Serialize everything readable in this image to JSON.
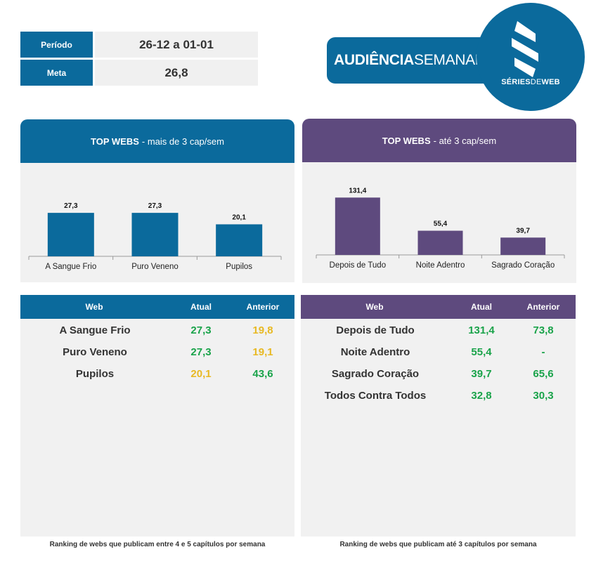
{
  "info": {
    "periodo_label": "Período",
    "periodo_value": "26-12 a 01-01",
    "meta_label": "Meta",
    "meta_value": "26,8"
  },
  "title": {
    "bold": "AUDIÊNCIA",
    "light": "SEMANAL"
  },
  "logo": {
    "bold1": "SÉRIES",
    "thin": "DE",
    "bold2": "WEB"
  },
  "colors": {
    "blue": "#0b6a9c",
    "purple": "#5e4a7e",
    "green": "#1aa34a",
    "yellow": "#e8b923"
  },
  "chart_data": [
    {
      "type": "bar",
      "title": "TOP WEBS - mais de 3 cap/sem",
      "title_bold": "TOP WEBS",
      "title_rest": "- mais de 3 cap/sem",
      "categories": [
        "A Sangue Frio",
        "Puro Veneno",
        "Pupilos"
      ],
      "values": [
        27.3,
        27.3,
        20.1
      ],
      "labels": [
        "27,3",
        "27,3",
        "20,1"
      ],
      "ylim": [
        0,
        30
      ],
      "color": "#0b6a9c",
      "grid": false
    },
    {
      "type": "bar",
      "title": "TOP WEBS - até 3 cap/sem",
      "title_bold": "TOP WEBS",
      "title_rest": "- até 3 cap/sem",
      "categories": [
        "Depois de Tudo",
        "Noite Adentro",
        "Sagrado Coração"
      ],
      "values": [
        131.4,
        55.4,
        39.7
      ],
      "labels": [
        "131,4",
        "55,4",
        "39,7"
      ],
      "ylim": [
        0,
        140
      ],
      "color": "#5e4a7e",
      "grid": false
    }
  ],
  "tables": {
    "left": {
      "headers": {
        "web": "Web",
        "atual": "Atual",
        "anterior": "Anterior"
      },
      "rows": [
        {
          "web": "A Sangue Frio",
          "atual": "27,3",
          "anterior": "19,8",
          "atual_color": "green",
          "anterior_color": "yellow"
        },
        {
          "web": "Puro Veneno",
          "atual": "27,3",
          "anterior": "19,1",
          "atual_color": "green",
          "anterior_color": "yellow"
        },
        {
          "web": "Pupilos",
          "atual": "20,1",
          "anterior": "43,6",
          "atual_color": "yellow",
          "anterior_color": "green"
        }
      ],
      "footnote": "Ranking de webs que publicam entre 4 e 5 capítulos por semana"
    },
    "right": {
      "headers": {
        "web": "Web",
        "atual": "Atual",
        "anterior": "Anterior"
      },
      "rows": [
        {
          "web": "Depois de Tudo",
          "atual": "131,4",
          "anterior": "73,8",
          "atual_color": "green",
          "anterior_color": "green"
        },
        {
          "web": "Noite Adentro",
          "atual": "55,4",
          "anterior": "-",
          "atual_color": "green",
          "anterior_color": "green"
        },
        {
          "web": "Sagrado Coração",
          "atual": "39,7",
          "anterior": "65,6",
          "atual_color": "green",
          "anterior_color": "green"
        },
        {
          "web": "Todos Contra Todos",
          "atual": "32,8",
          "anterior": "30,3",
          "atual_color": "green",
          "anterior_color": "green"
        }
      ],
      "footnote": "Ranking de webs que publicam até 3 capítulos por semana"
    }
  }
}
